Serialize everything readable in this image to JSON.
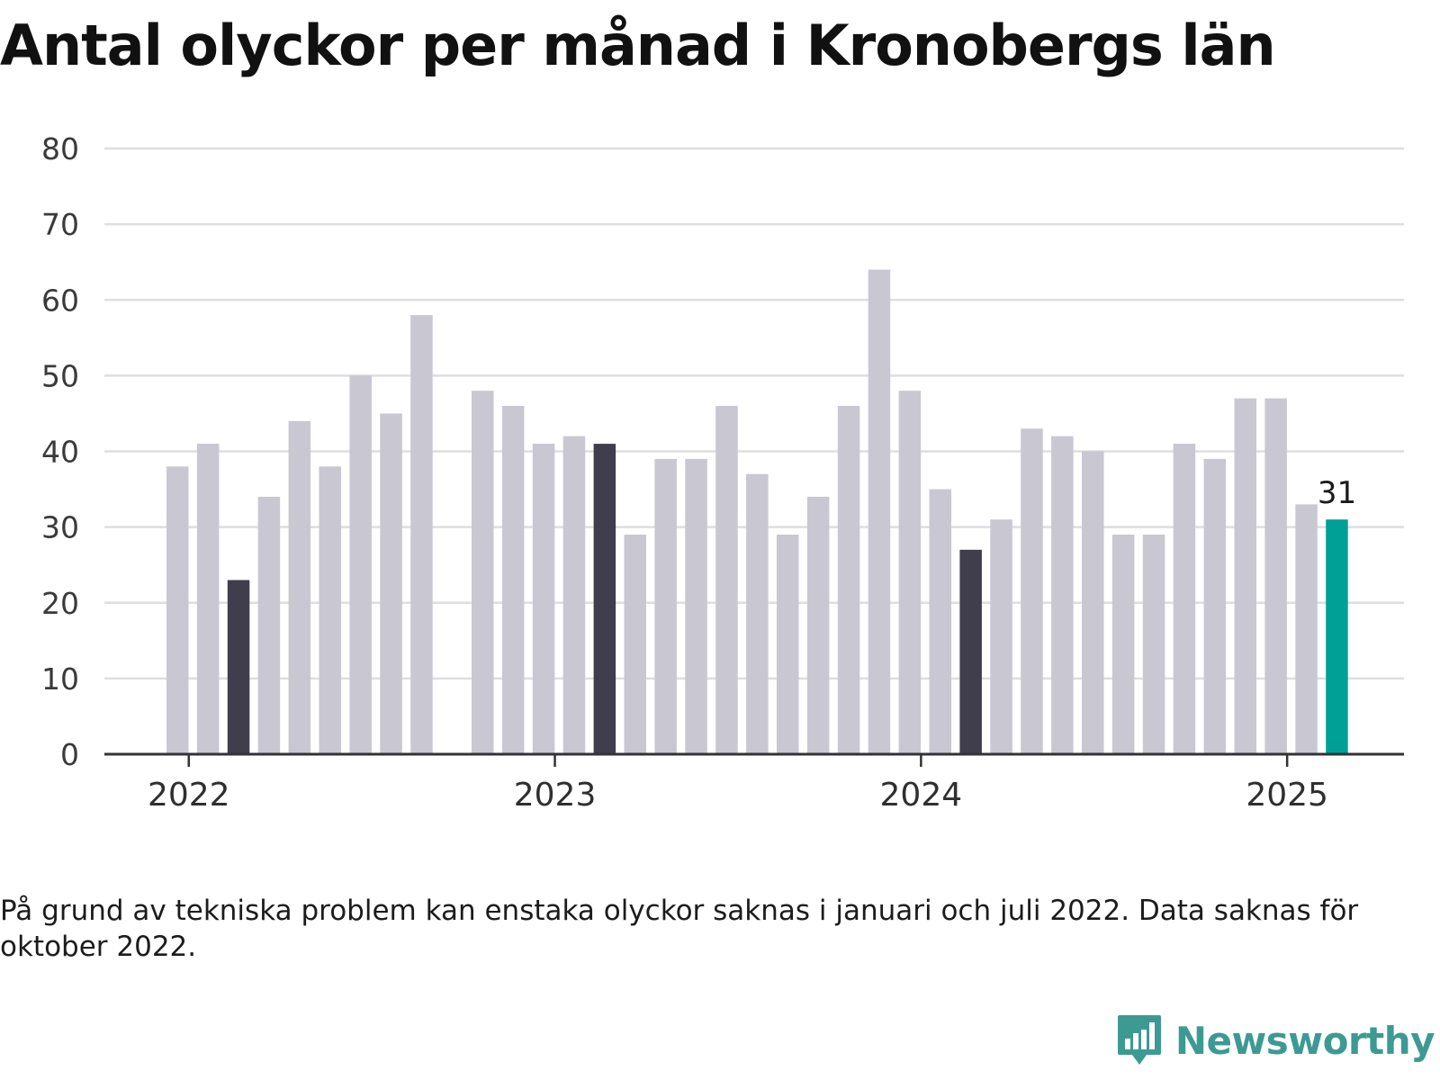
{
  "title": "Antal olyckor per månad i Kronobergs län",
  "footnote": "På grund av tekniska problem kan enstaka olyckor saknas i januari och juli 2022. Data saknas för oktober 2022.",
  "brand": {
    "name": "Newsworthy",
    "icon": "chart-bubble-icon"
  },
  "colors": {
    "regular": "#c8c7d2",
    "highlight": "#403e4c",
    "latest": "#00a096",
    "grid": "#dedee2",
    "axis": "#333333"
  },
  "chart_data": {
    "type": "bar",
    "title": "Antal olyckor per månad i Kronobergs län",
    "xlabel": "",
    "ylabel": "",
    "ylim": [
      0,
      80
    ],
    "yticks": [
      0,
      10,
      20,
      30,
      40,
      50,
      60,
      70,
      80
    ],
    "grid": true,
    "x_tick_labels": [
      {
        "label": "2022",
        "at": "2022-01"
      },
      {
        "label": "2023",
        "at": "2023-01"
      },
      {
        "label": "2024",
        "at": "2024-01"
      },
      {
        "label": "2025",
        "at": "2025-01"
      }
    ],
    "categories": [
      "2022-01",
      "2022-02",
      "2022-03",
      "2022-04",
      "2022-05",
      "2022-06",
      "2022-07",
      "2022-08",
      "2022-09",
      "2022-10",
      "2022-11",
      "2022-12",
      "2023-01",
      "2023-02",
      "2023-03",
      "2023-04",
      "2023-05",
      "2023-06",
      "2023-07",
      "2023-08",
      "2023-09",
      "2023-10",
      "2023-11",
      "2023-12",
      "2024-01",
      "2024-02",
      "2024-03",
      "2024-04",
      "2024-05",
      "2024-06",
      "2024-07",
      "2024-08",
      "2024-09",
      "2024-10",
      "2024-11",
      "2024-12",
      "2025-01",
      "2025-02",
      "2025-03"
    ],
    "values": [
      38,
      41,
      23,
      34,
      44,
      38,
      50,
      45,
      58,
      null,
      48,
      46,
      41,
      42,
      41,
      29,
      39,
      39,
      46,
      37,
      29,
      34,
      46,
      64,
      48,
      35,
      27,
      31,
      43,
      42,
      40,
      29,
      29,
      41,
      39,
      47,
      47,
      33,
      31
    ],
    "highlighted": [
      "2022-03",
      "2023-03",
      "2024-03"
    ],
    "latest": "2025-03",
    "data_labels": [
      {
        "category": "2025-03",
        "text": "31"
      }
    ]
  }
}
